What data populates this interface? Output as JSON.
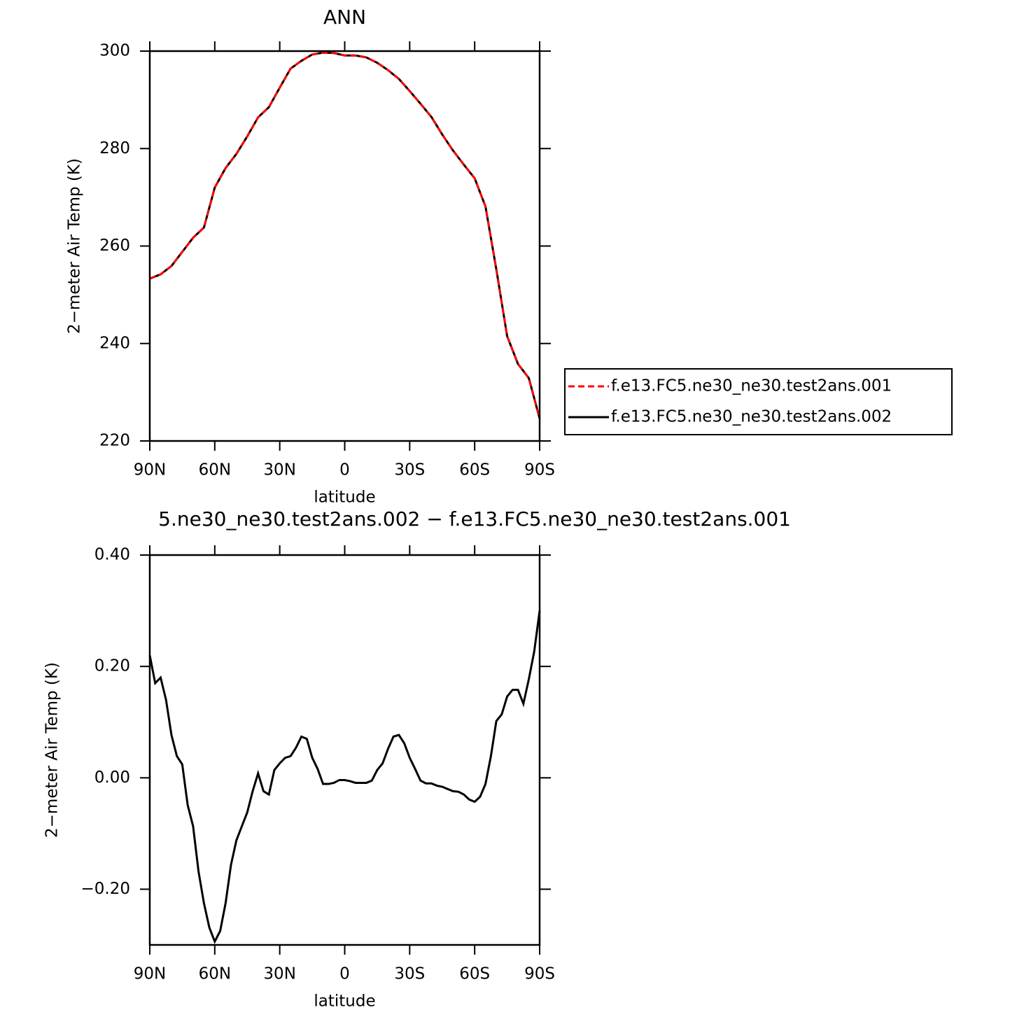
{
  "chart_data": [
    {
      "type": "line",
      "title": "ANN",
      "xlabel": "latitude",
      "ylabel": "2−meter Air Temp (K)",
      "x": [
        90,
        85,
        80,
        75,
        70,
        65,
        60,
        55,
        50,
        45,
        40,
        35,
        30,
        25,
        20,
        15,
        10,
        5,
        0,
        -5,
        -10,
        -15,
        -20,
        -25,
        -30,
        -35,
        -40,
        -45,
        -50,
        -55,
        -60,
        -65,
        -70,
        -75,
        -80,
        -85,
        -90
      ],
      "series": [
        {
          "name": "f.e13.FC5.ne30_ne30.test2ans.001",
          "color": "#ff0000",
          "linestyle": "dashed",
          "values": [
            253.3,
            254.2,
            255.9,
            258.8,
            261.7,
            263.8,
            272,
            276,
            278.9,
            282.5,
            286.4,
            288.5,
            292.5,
            296.4,
            298,
            299.3,
            299.7,
            299.6,
            299.1,
            299.1,
            298.7,
            297.6,
            296.1,
            294.3,
            291.8,
            289.2,
            286.5,
            282.9,
            279.6,
            276.7,
            273.9,
            268.1,
            255.2,
            241.5,
            235.8,
            232.9,
            224.6
          ]
        },
        {
          "name": "f.e13.FC5.ne30_ne30.test2ans.002",
          "color": "#000000",
          "linestyle": "solid",
          "values": [
            253.3,
            254.2,
            255.9,
            258.8,
            261.7,
            263.8,
            272,
            276,
            278.9,
            282.5,
            286.4,
            288.5,
            292.5,
            296.4,
            298,
            299.3,
            299.7,
            299.6,
            299.1,
            299.1,
            298.7,
            297.6,
            296.1,
            294.3,
            291.8,
            289.2,
            286.5,
            282.9,
            279.6,
            276.7,
            273.9,
            268.1,
            255.2,
            241.5,
            235.8,
            232.9,
            224.6
          ]
        }
      ],
      "xlim": [
        90,
        -90
      ],
      "xticks": [
        {
          "value": 90,
          "label": "90N"
        },
        {
          "value": 60,
          "label": "60N"
        },
        {
          "value": 30,
          "label": "30N"
        },
        0,
        {
          "value": -30,
          "label": "30S"
        },
        {
          "value": -60,
          "label": "60S"
        },
        {
          "value": -90,
          "label": "90S"
        }
      ],
      "ylim": [
        220,
        300
      ],
      "yticks": [
        220,
        240,
        260,
        280,
        300
      ],
      "grid": false,
      "legend": "right"
    },
    {
      "type": "line",
      "title": "5.ne30_ne30.test2ans.002 − f.e13.FC5.ne30_ne30.test2ans.001",
      "xlabel": "latitude",
      "ylabel": "2−meter Air Temp (K)",
      "x": [
        90,
        87.5,
        85,
        82.5,
        80,
        77.5,
        75,
        72.5,
        70,
        67.5,
        65,
        62.5,
        60,
        57.5,
        55,
        52.5,
        50,
        47.5,
        45,
        42.5,
        40,
        37.5,
        35,
        32.5,
        30,
        27.5,
        25,
        22.5,
        20,
        17.5,
        15,
        12.5,
        10,
        7.5,
        5,
        2.5,
        0,
        -2.5,
        -5,
        -7.5,
        -10,
        -12.5,
        -15,
        -17.5,
        -20,
        -22.5,
        -25,
        -27.5,
        -30,
        -32.5,
        -35,
        -37.5,
        -40,
        -42.5,
        -45,
        -47.5,
        -50,
        -52.5,
        -55,
        -57.5,
        -60,
        -62.5,
        -65,
        -67.5,
        -70,
        -72.5,
        -75,
        -77.5,
        -80,
        -82.5,
        -85,
        -87.5,
        -90
      ],
      "values": [
        0.22,
        0.17,
        0.18,
        0.14,
        0.077,
        0.039,
        0.024,
        -0.049,
        -0.087,
        -0.168,
        -0.225,
        -0.269,
        -0.294,
        -0.275,
        -0.225,
        -0.156,
        -0.112,
        -0.087,
        -0.062,
        -0.024,
        0.008,
        -0.024,
        -0.03,
        0.014,
        0.026,
        0.036,
        0.039,
        0.054,
        0.074,
        0.07,
        0.036,
        0.016,
        -0.011,
        -0.011,
        -0.009,
        -0.004,
        -0.004,
        -0.006,
        -0.009,
        -0.009,
        -0.009,
        -0.005,
        0.014,
        0.026,
        0.052,
        0.074,
        0.077,
        0.062,
        0.036,
        0.016,
        -0.005,
        -0.01,
        -0.01,
        -0.014,
        -0.016,
        -0.02,
        -0.024,
        -0.025,
        -0.03,
        -0.039,
        -0.043,
        -0.034,
        -0.011,
        0.039,
        0.102,
        0.114,
        0.146,
        0.158,
        0.158,
        0.133,
        0.177,
        0.227,
        0.3
      ],
      "color": "#000000",
      "xlim": [
        90,
        -90
      ],
      "xticks": [
        {
          "value": 90,
          "label": "90N"
        },
        {
          "value": 60,
          "label": "60N"
        },
        {
          "value": 30,
          "label": "30N"
        },
        0,
        {
          "value": -30,
          "label": "30S"
        },
        {
          "value": -60,
          "label": "60S"
        },
        {
          "value": -90,
          "label": "90S"
        }
      ],
      "ylim": [
        -0.3,
        0.4
      ],
      "yticks": [
        {
          "value": -0.2,
          "label": "−0.20"
        },
        {
          "value": 0,
          "label": "0.00"
        },
        {
          "value": 0.2,
          "label": "0.20"
        },
        {
          "value": 0.4,
          "label": "0.40"
        }
      ],
      "grid": false
    }
  ]
}
